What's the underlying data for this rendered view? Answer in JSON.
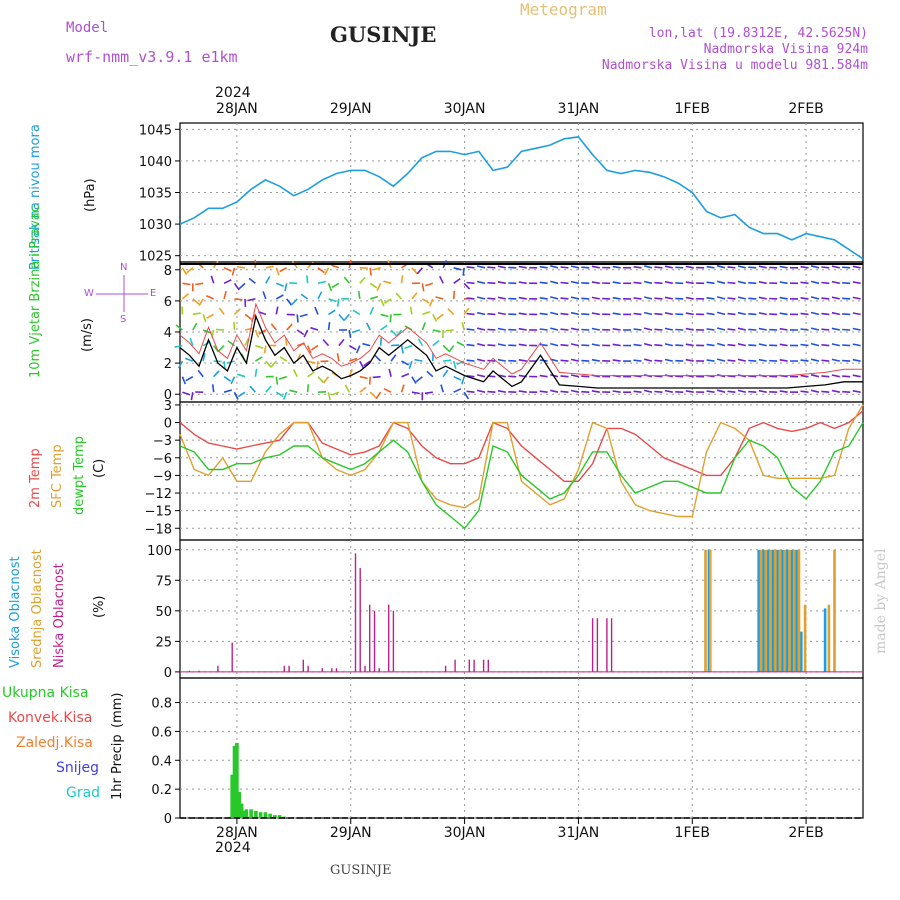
{
  "header": {
    "model_label": "Model",
    "model_name": "wrf-nmm_v3.9.1  e1km",
    "station": "GUSINJE",
    "meteogram": "Meteogram",
    "lonlat": "lon,lat (19.8312E, 42.5625N)",
    "elevation": "Nadmorska Visina 924m",
    "model_elevation": "Nadmorska Visina u modelu 981.584m",
    "footer_station": "GUSINJE",
    "credit": "made by Angel",
    "top_year": "2024",
    "bottom_year": "2024"
  },
  "colors": {
    "pressure": "#1e9ee0",
    "temp2m": "#e84a4a",
    "sfc": "#e0a030",
    "dewpt": "#28c828",
    "high_cloud": "#1e9ee0",
    "mid_cloud": "#e0a030",
    "low_cloud": "#c0208c",
    "total_rain": "#28c828",
    "conv_rain": "#e84a4a",
    "freezing": "#f08030",
    "snow": "#4040e0",
    "grad": "#20c8c8",
    "model": "#b050d0",
    "credit": "#c8c8c8"
  },
  "chart_data": [
    {
      "type": "line",
      "panel": "pressure",
      "ylabel": "Pritisak na nivou mora",
      "unit": "(hPa)",
      "yticks": [
        "1025",
        "1030",
        "1035",
        "1040",
        "1045"
      ],
      "ylim": [
        1024,
        1046
      ],
      "x_hours": [
        0,
        3,
        6,
        9,
        12,
        15,
        18,
        21,
        24,
        27,
        30,
        33,
        36,
        39,
        42,
        45,
        48,
        51,
        54,
        57,
        60,
        63,
        66,
        69,
        72,
        75,
        78,
        81,
        84,
        87,
        90,
        93,
        96,
        99,
        102,
        105,
        108,
        111,
        114,
        117,
        120,
        123,
        126,
        129,
        132,
        135,
        138,
        144
      ],
      "series": [
        {
          "values": [
            1030,
            1031,
            1032.5,
            1032.5,
            1033.5,
            1035.5,
            1037,
            1036,
            1034.5,
            1035.5,
            1037,
            1038,
            1038.5,
            1038.5,
            1037.5,
            1036,
            1038,
            1040.5,
            1041.5,
            1041.5,
            1041,
            1041.5,
            1038.5,
            1039,
            1041.5,
            1042,
            1042.5,
            1043.5,
            1043.8,
            1041,
            1038.5,
            1038,
            1038.5,
            1038.2,
            1037.5,
            1036.5,
            1035,
            1032,
            1031,
            1031.5,
            1029.5,
            1028.5,
            1028.5,
            1027.5,
            1028.5,
            1028,
            1027.5,
            1024.5
          ]
        }
      ]
    },
    {
      "type": "line",
      "panel": "wind",
      "ylabel": "10m Vjetar Brzina i Pravac",
      "unit": "(m/s)",
      "yticks": [
        "0",
        "2",
        "4",
        "6",
        "8"
      ],
      "ylim": [
        -0.5,
        8.5
      ],
      "compass": {
        "n": "N",
        "w": "W",
        "e": "E",
        "s": "S"
      },
      "x_hours": [
        0,
        2,
        4,
        6,
        8,
        10,
        12,
        14,
        16,
        18,
        20,
        22,
        24,
        26,
        28,
        30,
        32,
        34,
        36,
        38,
        40,
        42,
        44,
        46,
        48,
        50,
        52,
        54,
        56,
        58,
        60,
        62,
        64,
        66,
        68,
        70,
        72,
        76,
        80,
        84,
        88,
        92,
        96,
        100,
        104,
        108,
        112,
        116,
        120,
        124,
        128,
        132,
        136,
        140,
        144
      ],
      "series": [
        {
          "name": "",
          "values": [
            3.0,
            2.5,
            1.8,
            3.5,
            2.0,
            1.5,
            3.0,
            2.0,
            5.0,
            3.5,
            2.5,
            3.0,
            2.0,
            2.5,
            1.5,
            1.8,
            1.5,
            1.0,
            1.2,
            1.5,
            2.0,
            3.0,
            2.5,
            3.0,
            3.5,
            3.0,
            2.5,
            1.5,
            1.8,
            1.5,
            1.2,
            1.0,
            0.8,
            1.5,
            1.0,
            0.5,
            0.8,
            2.5,
            0.6,
            0.5,
            0.4,
            0.4,
            0.4,
            0.4,
            0.4,
            0.4,
            0.4,
            0.4,
            0.4,
            0.4,
            0.4,
            0.5,
            0.6,
            0.8,
            0.8
          ]
        }
      ]
    },
    {
      "type": "line",
      "panel": "temperature",
      "ylabels": [
        "2m Temp",
        "SFC Temp",
        "dewpt Temp"
      ],
      "unit": "(C)",
      "yticks": [
        "3",
        "0",
        "−3",
        "−6",
        "−9",
        "−12",
        "−15",
        "−18"
      ],
      "ylim": [
        -20,
        3.5
      ],
      "x_hours": [
        0,
        3,
        6,
        9,
        12,
        15,
        18,
        21,
        24,
        27,
        30,
        33,
        36,
        39,
        42,
        45,
        48,
        51,
        54,
        57,
        60,
        63,
        66,
        69,
        72,
        75,
        78,
        81,
        84,
        87,
        90,
        93,
        96,
        99,
        102,
        105,
        108,
        111,
        114,
        117,
        120,
        123,
        126,
        129,
        132,
        135,
        138,
        141,
        144
      ],
      "series": [
        {
          "name": "2m Temp",
          "values": [
            0,
            -2,
            -3.5,
            -4,
            -4.5,
            -4,
            -3.5,
            -3,
            0,
            0,
            -3.5,
            -4.5,
            -5.5,
            -5,
            -4,
            0,
            -1,
            -4,
            -6,
            -7,
            -7,
            -6,
            0,
            -1,
            -4,
            -6,
            -8,
            -10,
            -10,
            -7,
            -1,
            -1,
            -2,
            -4,
            -6,
            -7,
            -8,
            -9,
            -9,
            -6,
            -1,
            0,
            -1,
            -1.5,
            -1,
            0,
            -1,
            0,
            2
          ]
        },
        {
          "name": "SFC Temp",
          "values": [
            -2,
            -8,
            -9,
            -6,
            -10,
            -10,
            -5,
            -2,
            0,
            0,
            -6,
            -8,
            -9,
            -8,
            -5,
            0,
            0,
            -10,
            -13,
            -14,
            -14.5,
            -13,
            0,
            0,
            -10,
            -12,
            -14,
            -13,
            -8,
            0,
            -1,
            -10,
            -14,
            -15,
            -15.5,
            -16,
            -16,
            -5,
            0,
            -1,
            -3,
            -9,
            -9.5,
            -9.5,
            -9.5,
            -9.5,
            -9,
            -1,
            3
          ]
        },
        {
          "name": "dewpt Temp",
          "values": [
            -4,
            -5,
            -8,
            -8,
            -7,
            -7,
            -6,
            -5.5,
            -4,
            -4,
            -6,
            -7,
            -8,
            -7,
            -5,
            -3,
            -5,
            -10,
            -14,
            -16,
            -18,
            -15,
            -4,
            -5,
            -9,
            -11,
            -13,
            -12,
            -9,
            -5,
            -5,
            -9,
            -12,
            -11,
            -10,
            -10,
            -11,
            -12,
            -12,
            -6,
            -3,
            -4,
            -6,
            -11,
            -13,
            -10,
            -5,
            -4,
            0
          ]
        }
      ]
    },
    {
      "type": "bar",
      "panel": "cloud",
      "ylabels": [
        "Visoka Oblacnost",
        "Srednja Oblacnost",
        "Niska Oblacnost"
      ],
      "unit": "(%)",
      "yticks": [
        "0",
        "25",
        "50",
        "75",
        "100"
      ],
      "ylim": [
        -5,
        108
      ],
      "series": [
        {
          "name": "Niska Oblacnost",
          "x_hours": [
            2,
            4,
            8,
            11,
            22,
            23,
            26,
            27,
            30,
            32,
            33,
            37,
            38,
            39,
            40,
            41,
            42,
            44,
            45,
            56,
            58,
            61,
            62,
            64,
            65,
            87,
            88,
            90,
            91
          ],
          "values": [
            1,
            1,
            5,
            24,
            5,
            5,
            10,
            5,
            3,
            3,
            3,
            97,
            85,
            5,
            55,
            50,
            3,
            55,
            50,
            5,
            10,
            10,
            10,
            10,
            10,
            44,
            44,
            44,
            44
          ]
        },
        {
          "name": "Visoka Oblacnost",
          "x_hours": [
            111.5,
            122,
            123,
            124,
            125,
            126,
            127,
            128,
            129,
            130,
            131,
            136
          ],
          "values": [
            100,
            100,
            100,
            100,
            100,
            100,
            100,
            100,
            100,
            100,
            33,
            52
          ]
        },
        {
          "name": "Srednja Oblacnost",
          "x_hours": [
            110.8,
            111.8,
            122.5,
            123.5,
            124.5,
            125.5,
            126.5,
            127.5,
            128.5,
            129.5,
            130.5,
            131.8,
            136.8,
            138
          ],
          "values": [
            100,
            100,
            100,
            100,
            100,
            100,
            100,
            100,
            100,
            100,
            100,
            55,
            55,
            100
          ]
        }
      ]
    },
    {
      "type": "bar",
      "panel": "precip",
      "ylabel": "1hr Precip",
      "unit": "(mm)",
      "yticks": [
        "0",
        "0.2",
        "0.4",
        "0.6",
        "0.8"
      ],
      "ylim": [
        0,
        0.97
      ],
      "legend": [
        "Ukupna  Kisa",
        "Konvek.Kisa",
        "Zaledj.Kisa",
        "Snijeg",
        "Grad"
      ],
      "x_hours": [
        11,
        11.5,
        12,
        12.5,
        13,
        13.5,
        14,
        15,
        16,
        17,
        18,
        19,
        20,
        21,
        22
      ],
      "series": [
        {
          "name": "Ukupna  Kisa",
          "values": [
            0.3,
            0.5,
            0.52,
            0.18,
            0.1,
            0.05,
            0.06,
            0.06,
            0.05,
            0.04,
            0.04,
            0.03,
            0.02,
            0.02,
            0.01
          ]
        }
      ]
    }
  ],
  "xaxis": {
    "top_labels": [
      "28JAN",
      "29JAN",
      "30JAN",
      "31JAN",
      "1FEB",
      "2FEB"
    ],
    "bottom_labels": [
      "28JAN",
      "29JAN",
      "30JAN",
      "31JAN",
      "1FEB",
      "2FEB"
    ],
    "day_hours": [
      12,
      36,
      60,
      84,
      108,
      132
    ],
    "xlim": [
      0,
      144
    ]
  }
}
